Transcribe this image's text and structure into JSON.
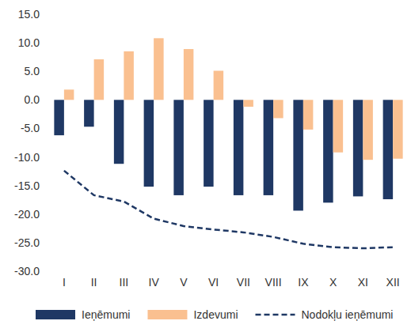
{
  "chart_data": {
    "type": "bar",
    "categories": [
      "I",
      "II",
      "III",
      "IV",
      "V",
      "VI",
      "VII",
      "VIII",
      "IX",
      "X",
      "XI",
      "XII"
    ],
    "series": [
      {
        "name": "Ieņēmumi",
        "type": "bar",
        "color": "#1f3864",
        "values": [
          -6.2,
          -4.7,
          -11.2,
          -15.2,
          -16.7,
          -15.2,
          -16.7,
          -16.7,
          -19.4,
          -18.0,
          -16.9,
          -17.4
        ]
      },
      {
        "name": "Izdevumi",
        "type": "bar",
        "color": "#fac090",
        "values": [
          1.8,
          7.1,
          8.5,
          10.8,
          8.9,
          5.1,
          -1.2,
          -3.2,
          -5.2,
          -9.2,
          -10.5,
          -10.3
        ]
      },
      {
        "name": "Nodokļu ieņēmumi",
        "type": "line",
        "color": "#1f3864",
        "line_style": "dashed",
        "values": [
          -12.4,
          -16.7,
          -17.8,
          -20.8,
          -22.1,
          -22.7,
          -23.2,
          -24.0,
          -25.2,
          -25.8,
          -26.0,
          -25.8
        ]
      }
    ],
    "ylim": [
      -30,
      15
    ],
    "yticks": [
      {
        "value": 15,
        "label": "15.0"
      },
      {
        "value": 10,
        "label": "10.0"
      },
      {
        "value": 5,
        "label": "5.0"
      },
      {
        "value": 0,
        "label": "0.0"
      },
      {
        "value": -5,
        "label": "-5.0"
      },
      {
        "value": -10,
        "label": "-10.0"
      },
      {
        "value": -15,
        "label": "-15.0"
      },
      {
        "value": -20,
        "label": "-20.0"
      },
      {
        "value": -25,
        "label": "-25.0"
      },
      {
        "value": -30,
        "label": "-30.0"
      }
    ],
    "grid": false,
    "legend": "bottom"
  }
}
